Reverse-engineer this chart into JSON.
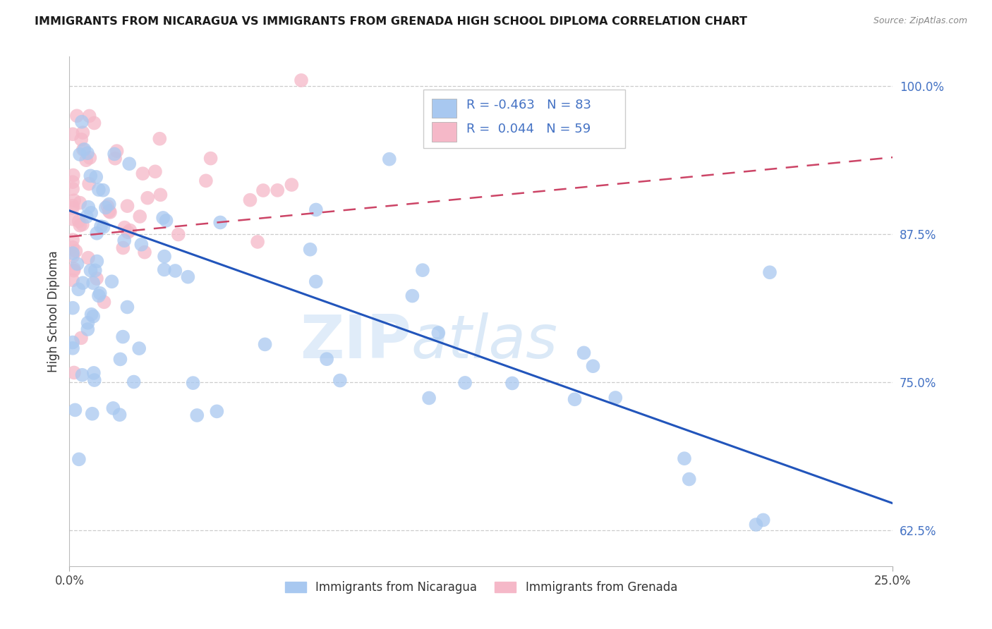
{
  "title": "IMMIGRANTS FROM NICARAGUA VS IMMIGRANTS FROM GRENADA HIGH SCHOOL DIPLOMA CORRELATION CHART",
  "source": "Source: ZipAtlas.com",
  "ylabel": "High School Diploma",
  "legend_label1": "Immigrants from Nicaragua",
  "legend_label2": "Immigrants from Grenada",
  "R1": -0.463,
  "N1": 83,
  "R2": 0.044,
  "N2": 59,
  "blue_color": "#a8c8f0",
  "pink_color": "#f5b8c8",
  "blue_line_color": "#2255bb",
  "pink_line_color": "#cc4466",
  "watermark_zip": "ZIP",
  "watermark_atlas": "atlas",
  "xmin": 0.0,
  "xmax": 0.25,
  "ymin": 0.595,
  "ymax": 1.025,
  "ytick_values": [
    1.0,
    0.875,
    0.75,
    0.625
  ],
  "ytick_labels": [
    "100.0%",
    "87.5%",
    "75.0%",
    "62.5%"
  ],
  "blue_line_y0": 0.895,
  "blue_line_y1": 0.648,
  "pink_line_y0": 0.873,
  "pink_line_y1": 0.94
}
